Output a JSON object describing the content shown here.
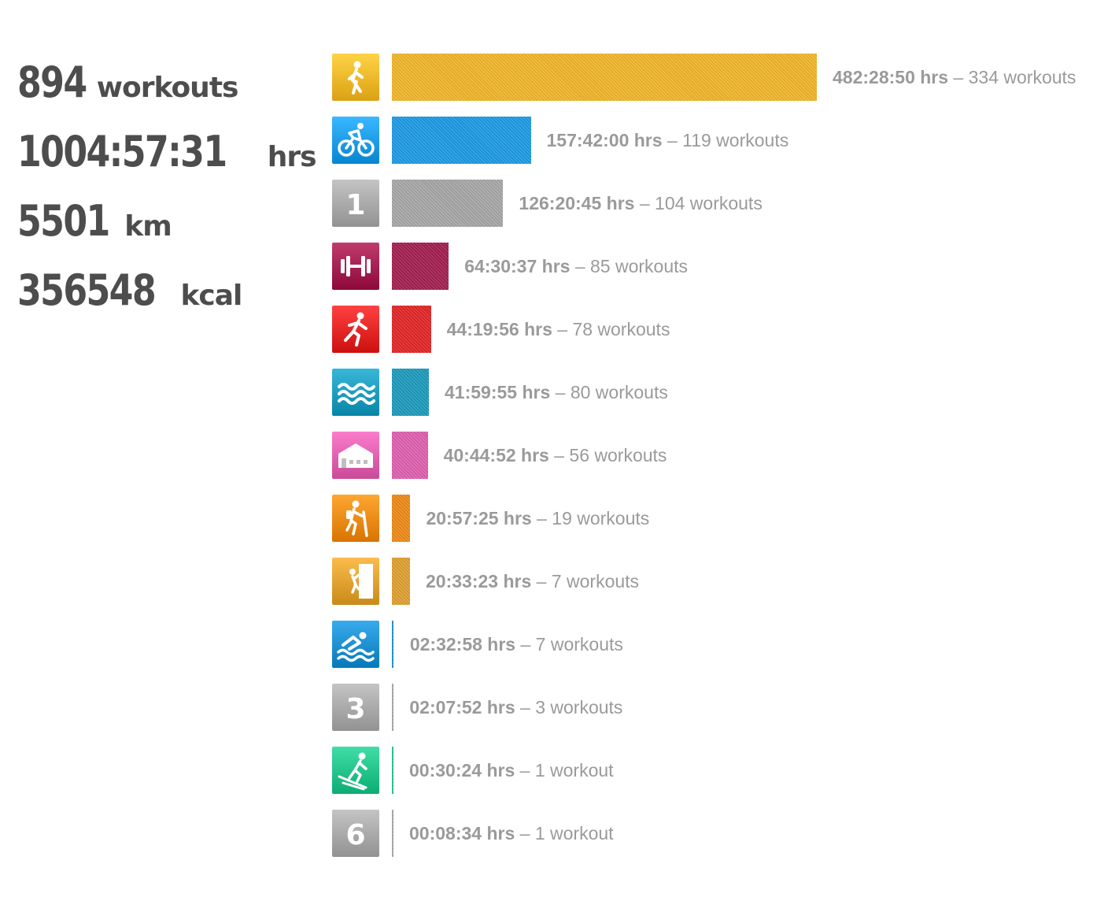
{
  "summary": {
    "workouts_value": "894",
    "workouts_unit": "workouts",
    "hours_value": "1004:57:31",
    "hours_unit": "hrs",
    "distance_value": "5501",
    "distance_unit": "km",
    "calories_value": "356548",
    "calories_unit": "kcal"
  },
  "chart_data": {
    "type": "bar",
    "orientation": "horizontal",
    "unit": "hrs",
    "separator": "–",
    "series": [
      {
        "sport": "walking",
        "icon": "walking-icon",
        "color": "#f2b72a",
        "hours": 482.48,
        "duration": "482:28:50",
        "count_label": "334 workouts"
      },
      {
        "sport": "cycling",
        "icon": "cycling-icon",
        "color": "#1d9be6",
        "hours": 157.7,
        "duration": "157:42:00",
        "count_label": "119 workouts"
      },
      {
        "sport": "custom-1",
        "icon": "number-1-icon",
        "icon_text": "1",
        "color": "#a8a8a8",
        "hours": 126.35,
        "duration": "126:20:45",
        "count_label": "104 workouts"
      },
      {
        "sport": "strength",
        "icon": "dumbbell-icon",
        "color": "#a31f50",
        "hours": 64.51,
        "duration": "64:30:37",
        "count_label": "85 workouts"
      },
      {
        "sport": "running",
        "icon": "running-icon",
        "color": "#e32526",
        "hours": 44.33,
        "duration": "44:19:56",
        "count_label": "78 workouts"
      },
      {
        "sport": "water",
        "icon": "waves-icon",
        "color": "#1d9bbd",
        "hours": 42.0,
        "duration": "41:59:55",
        "count_label": "80 workouts"
      },
      {
        "sport": "indoor",
        "icon": "building-icon",
        "color": "#e060b0",
        "hours": 40.75,
        "duration": "40:44:52",
        "count_label": "56 workouts"
      },
      {
        "sport": "hiking",
        "icon": "hiking-icon",
        "color": "#ef8a16",
        "hours": 20.96,
        "duration": "20:57:25",
        "count_label": "19 workouts"
      },
      {
        "sport": "climbing",
        "icon": "climbing-icon",
        "color": "#e0a030",
        "hours": 20.56,
        "duration": "20:33:23",
        "count_label": "7 workouts"
      },
      {
        "sport": "swimming",
        "icon": "swimming-icon",
        "color": "#1d8fd0",
        "hours": 2.55,
        "duration": "02:32:58",
        "count_label": "7 workouts"
      },
      {
        "sport": "custom-3",
        "icon": "number-3-icon",
        "icon_text": "3",
        "color": "#a8a8a8",
        "hours": 2.13,
        "duration": "02:07:52",
        "count_label": "3 workouts"
      },
      {
        "sport": "skiing",
        "icon": "skiing-icon",
        "color": "#22c28a",
        "hours": 0.51,
        "duration": "00:30:24",
        "count_label": "1 workout"
      },
      {
        "sport": "custom-6",
        "icon": "number-6-icon",
        "icon_text": "6",
        "color": "#a8a8a8",
        "hours": 0.14,
        "duration": "00:08:34",
        "count_label": "1 workout"
      }
    ]
  }
}
